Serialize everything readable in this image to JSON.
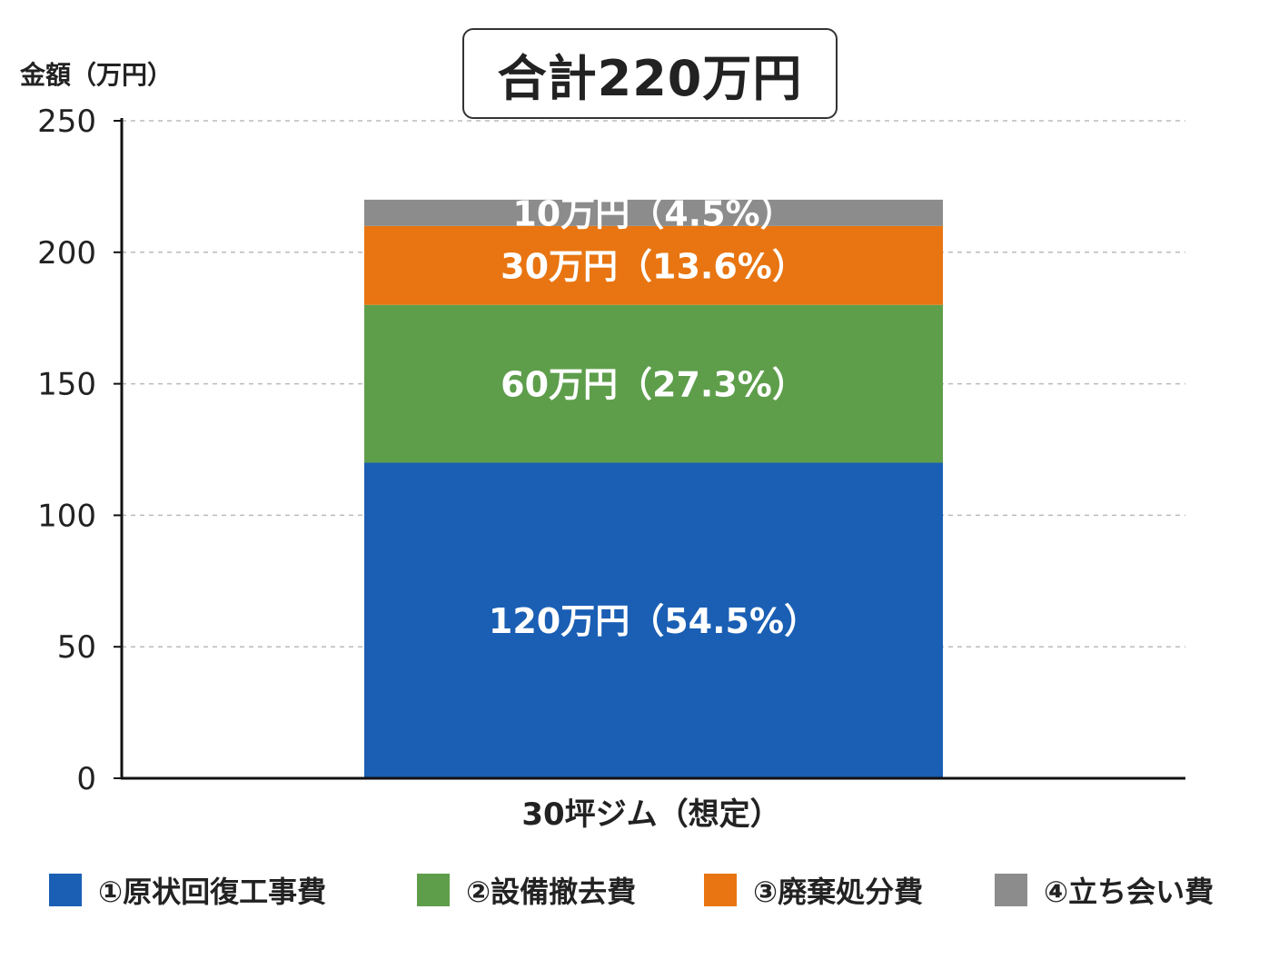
{
  "total_label": "合計220万円",
  "chart_data": {
    "type": "bar",
    "stacked": true,
    "categories": [
      "30坪ジム（想定）"
    ],
    "ylabel": "金額（万円）",
    "ylim": [
      0,
      250
    ],
    "yticks": [
      0,
      50,
      100,
      150,
      200,
      250
    ],
    "grid": true,
    "legend_position": "bottom",
    "series": [
      {
        "name": "①原状回復工事費",
        "values": [
          120
        ],
        "label": "120万円（54.5%）",
        "color": "#1a5fb4"
      },
      {
        "name": "②設備撤去費",
        "values": [
          60
        ],
        "label": "60万円（27.3%）",
        "color": "#5e9e4b"
      },
      {
        "name": "③廃棄処分費",
        "values": [
          30
        ],
        "label": "30万円（13.6%）",
        "color": "#e87511"
      },
      {
        "name": "④立ち会い費",
        "values": [
          10
        ],
        "label": "10万円（4.5%）",
        "color": "#8c8c8c"
      }
    ]
  }
}
